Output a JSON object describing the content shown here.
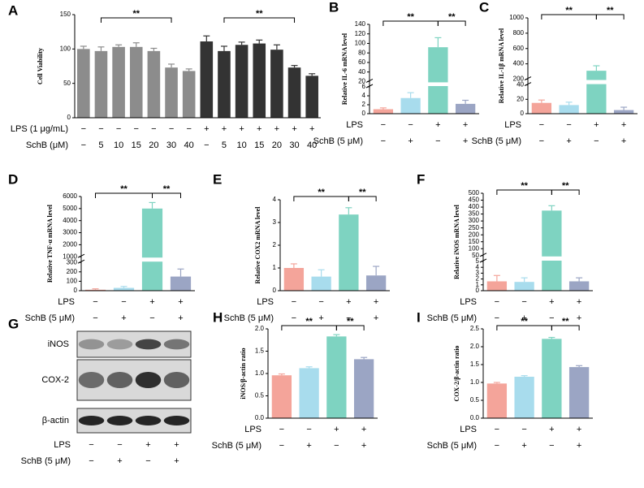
{
  "chart_data": [
    {
      "type": "bar",
      "letter": "A",
      "ylabel": "Cell Viability",
      "ylim": [
        0,
        150
      ],
      "yticks": [
        0,
        50,
        100,
        150
      ],
      "values": [
        100,
        97,
        103,
        103,
        97,
        73,
        68,
        111,
        97,
        106,
        108,
        99,
        73,
        61
      ],
      "errors": [
        4,
        6,
        3,
        6,
        4,
        5,
        3,
        8,
        7,
        4,
        5,
        7,
        3,
        3
      ],
      "colors": [
        "#8c8c8c",
        "#8c8c8c",
        "#8c8c8c",
        "#8c8c8c",
        "#8c8c8c",
        "#8c8c8c",
        "#8c8c8c",
        "#333333",
        "#333333",
        "#333333",
        "#333333",
        "#333333",
        "#333333",
        "#333333"
      ],
      "rows": [
        {
          "label": "LPS (1 μg/mL)",
          "values": [
            "−",
            "−",
            "−",
            "−",
            "−",
            "−",
            "−",
            "+",
            "+",
            "+",
            "+",
            "+",
            "+",
            "+"
          ]
        },
        {
          "label": "SchB (μM)",
          "values": [
            "−",
            "5",
            "10",
            "15",
            "20",
            "30",
            "40",
            "−",
            "5",
            "10",
            "15",
            "20",
            "30",
            "40"
          ]
        }
      ],
      "annotations": [
        "**",
        "**"
      ]
    },
    {
      "type": "bar",
      "letter": "B",
      "ylabel": "Relative IL-6 mRNA level",
      "ylim": [
        0,
        140
      ],
      "ybreak": [
        6,
        20
      ],
      "yticks": [
        0,
        2,
        4,
        6,
        20,
        40,
        60,
        80,
        100,
        120,
        140
      ],
      "values": [
        1,
        3.5,
        92,
        2.2
      ],
      "errors": [
        0.3,
        1.2,
        20,
        0.8
      ],
      "colors": [
        "#f4a49a",
        "#a8dced",
        "#7ed3c1",
        "#9ba5c4"
      ],
      "rows": [
        {
          "label": "LPS",
          "values": [
            "−",
            "−",
            "+",
            "+"
          ]
        },
        {
          "label": "SchB (5 μM)",
          "values": [
            "−",
            "+",
            "−",
            "+"
          ]
        }
      ],
      "annotations": [
        "**",
        "**"
      ]
    },
    {
      "type": "bar",
      "letter": "C",
      "ylabel": "Relative IL-1β mRNA level",
      "ylim": [
        0,
        1000
      ],
      "ybreak": [
        40,
        200
      ],
      "yticks": [
        0,
        20,
        40,
        200,
        400,
        600,
        800,
        1000
      ],
      "values": [
        15,
        12,
        310,
        5
      ],
      "errors": [
        4,
        4,
        65,
        4
      ],
      "colors": [
        "#f4a49a",
        "#a8dced",
        "#7ed3c1",
        "#9ba5c4"
      ],
      "rows": [
        {
          "label": "LPS",
          "values": [
            "−",
            "−",
            "+",
            "+"
          ]
        },
        {
          "label": "SchB (5 μM)",
          "values": [
            "−",
            "+",
            "−",
            "+"
          ]
        }
      ],
      "annotations": [
        "**",
        "**"
      ]
    },
    {
      "type": "bar",
      "letter": "D",
      "ylabel": "Relative TNF-α mRNA level",
      "ylim": [
        0,
        6000
      ],
      "ybreak": [
        300,
        1000
      ],
      "yticks": [
        0,
        100,
        200,
        300,
        1000,
        2000,
        3000,
        4000,
        5000,
        6000
      ],
      "values": [
        10,
        30,
        5000,
        150
      ],
      "errors": [
        10,
        15,
        500,
        80
      ],
      "colors": [
        "#f4a49a",
        "#a8dced",
        "#7ed3c1",
        "#9ba5c4"
      ],
      "rows": [
        {
          "label": "LPS",
          "values": [
            "−",
            "−",
            "+",
            "+"
          ]
        },
        {
          "label": "SchB (5 μM)",
          "values": [
            "−",
            "+",
            "−",
            "+"
          ]
        }
      ],
      "annotations": [
        "**",
        "**"
      ]
    },
    {
      "type": "bar",
      "letter": "E",
      "ylabel": "Relative COX2 mRNA level",
      "ylim": [
        0,
        4
      ],
      "yticks": [
        0,
        1,
        2,
        3,
        4
      ],
      "values": [
        1.0,
        0.62,
        3.35,
        0.67
      ],
      "errors": [
        0.18,
        0.3,
        0.3,
        0.4
      ],
      "colors": [
        "#f4a49a",
        "#a8dced",
        "#7ed3c1",
        "#9ba5c4"
      ],
      "rows": [
        {
          "label": "LPS",
          "values": [
            "−",
            "−",
            "+",
            "+"
          ]
        },
        {
          "label": "SchB (5 μM)",
          "values": [
            "−",
            "+",
            "−",
            "+"
          ]
        }
      ],
      "annotations": [
        "**",
        "**"
      ]
    },
    {
      "type": "bar",
      "letter": "F",
      "ylabel": "Relative iNOS mRNA level",
      "ylim": [
        0,
        500
      ],
      "ybreak": [
        5,
        50
      ],
      "yticks": [
        0,
        1,
        2,
        3,
        4,
        5,
        50,
        100,
        150,
        200,
        250,
        300,
        350,
        400,
        450,
        500
      ],
      "values": [
        1.6,
        1.5,
        375,
        1.6
      ],
      "errors": [
        1.0,
        0.7,
        35,
        0.6
      ],
      "colors": [
        "#f4a49a",
        "#a8dced",
        "#7ed3c1",
        "#9ba5c4"
      ],
      "rows": [
        {
          "label": "LPS",
          "values": [
            "−",
            "−",
            "+",
            "+"
          ]
        },
        {
          "label": "SchB (5 μM)",
          "values": [
            "−",
            "+",
            "−",
            "+"
          ]
        }
      ],
      "annotations": [
        "**",
        "**"
      ]
    },
    {
      "type": "blot",
      "letter": "G",
      "bands": [
        "iNOS",
        "COX-2",
        "β-actin"
      ],
      "rows": [
        {
          "label": "LPS",
          "values": [
            "−",
            "−",
            "+",
            "+"
          ]
        },
        {
          "label": "SchB (5 μM)",
          "values": [
            "−",
            "+",
            "−",
            "+"
          ]
        }
      ]
    },
    {
      "type": "bar",
      "letter": "H",
      "ylabel": "iNOS/β-actin ratio",
      "ylim": [
        0,
        2
      ],
      "yticks": [
        {
          "value": 0,
          "label": "0.0"
        },
        0.5,
        {
          "value": 1,
          "label": "1.0"
        },
        1.5,
        {
          "value": 2,
          "label": "2.0"
        }
      ],
      "values": [
        0.96,
        1.12,
        1.83,
        1.32
      ],
      "errors": [
        0.03,
        0.03,
        0.04,
        0.04
      ],
      "colors": [
        "#f4a49a",
        "#a8dced",
        "#7ed3c1",
        "#9ba5c4"
      ],
      "rows": [
        {
          "label": "LPS",
          "values": [
            "−",
            "−",
            "+",
            "+"
          ]
        },
        {
          "label": "SchB (5 μM)",
          "values": [
            "−",
            "+",
            "−",
            "+"
          ]
        }
      ],
      "annotations": [
        "**",
        "**"
      ]
    },
    {
      "type": "bar",
      "letter": "I",
      "ylabel": "COX-2/β-actin ratio",
      "ylim": [
        0,
        2.5
      ],
      "yticks": [
        {
          "value": 0,
          "label": "0.0"
        },
        0.5,
        {
          "value": 1,
          "label": "1.0"
        },
        1.5,
        {
          "value": 2,
          "label": "2.0"
        },
        2.5
      ],
      "values": [
        0.97,
        1.16,
        2.22,
        1.43
      ],
      "errors": [
        0.03,
        0.03,
        0.04,
        0.04
      ],
      "colors": [
        "#f4a49a",
        "#a8dced",
        "#7ed3c1",
        "#9ba5c4"
      ],
      "rows": [
        {
          "label": "LPS",
          "values": [
            "−",
            "−",
            "+",
            "+"
          ]
        },
        {
          "label": "SchB (5 μM)",
          "values": [
            "−",
            "+",
            "−",
            "+"
          ]
        }
      ],
      "annotations": [
        "**",
        "**"
      ]
    }
  ]
}
